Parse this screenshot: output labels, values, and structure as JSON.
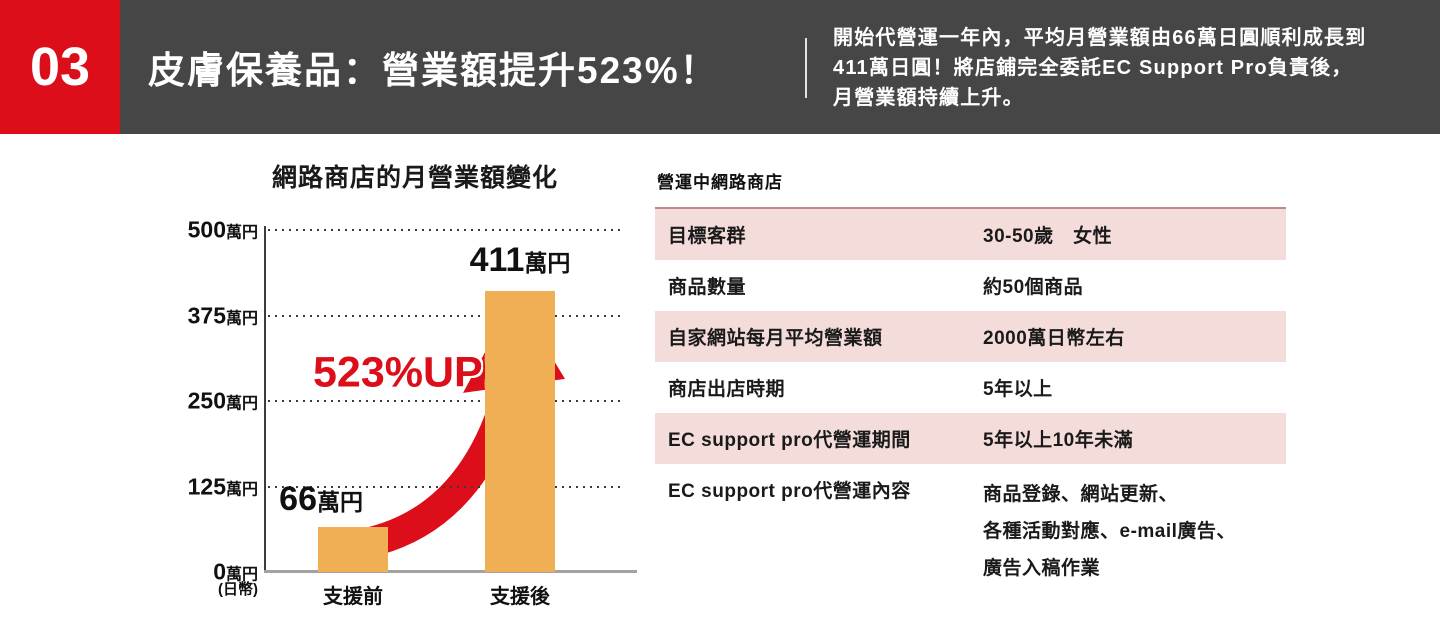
{
  "header": {
    "badge": "03",
    "title": "皮膚保養品：營業額提升523%！",
    "description": "開始代營運一年內，平均月營業額由66萬日圓順利成長到\n411萬日圓！將店鋪完全委託EC Support Pro負責後，\n月營業額持續上升。"
  },
  "chart_data": {
    "type": "bar",
    "title": "網路商店的月營業額變化",
    "categories": [
      "支援前",
      "支援後"
    ],
    "values": [
      66,
      411
    ],
    "value_labels": [
      "66萬円",
      "411萬円"
    ],
    "yticks": [
      500,
      375,
      250,
      125,
      0
    ],
    "ylabel_suffix": "萬円",
    "ylim": [
      0,
      500
    ],
    "unit_note": "(日幣)",
    "annotation": "523%UP!",
    "grid": "dotted-horizontal",
    "legend": "none"
  },
  "table": {
    "title": "營運中網路商店",
    "rows": [
      {
        "label": "目標客群",
        "value": [
          "30-50歲　女性"
        ]
      },
      {
        "label": "商品數量",
        "value": [
          "約50個商品"
        ]
      },
      {
        "label": "自家網站每月平均營業額",
        "value": [
          "2000萬日幣左右"
        ]
      },
      {
        "label": "商店出店時期",
        "value": [
          "5年以上"
        ]
      },
      {
        "label": "EC support pro代營運期間",
        "value": [
          "5年以上10年未滿"
        ]
      },
      {
        "label": "EC support pro代營運內容",
        "value": [
          "商品登錄、網站更新、",
          "各種活動對應、e-mail廣告、",
          "廣告入稿作業"
        ]
      }
    ]
  },
  "colors": {
    "accent_red": "#dc0e1a",
    "bar_orange": "#f0ae55",
    "row_pink": "#f4dcda",
    "header_gray": "#464646",
    "table_top_border": "#bb8a84"
  }
}
